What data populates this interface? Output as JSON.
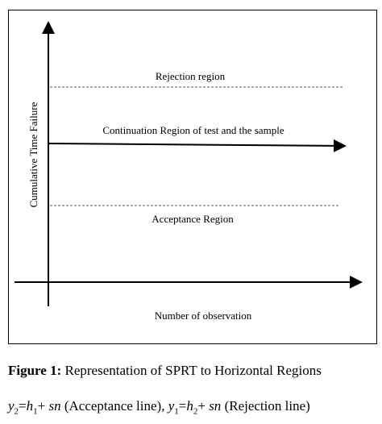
{
  "diagram": {
    "regions": {
      "rejection": "Rejection region",
      "continuation": "Continuation Region of test and the sample",
      "acceptance": "Acceptance Region"
    },
    "y_axis_label": "Cumulative Time Failure",
    "x_axis_label": "Number of observation"
  },
  "caption": {
    "label": "Figure 1:",
    "text": "Representation of SPRT to Horizontal Regions",
    "formula": [
      "y",
      "2",
      "=",
      "h",
      "1",
      "+ ",
      "sn",
      " (Acceptance line), ",
      "y",
      "1",
      "=",
      "h",
      "2",
      "+ ",
      "sn",
      " (Rejection line)"
    ]
  }
}
